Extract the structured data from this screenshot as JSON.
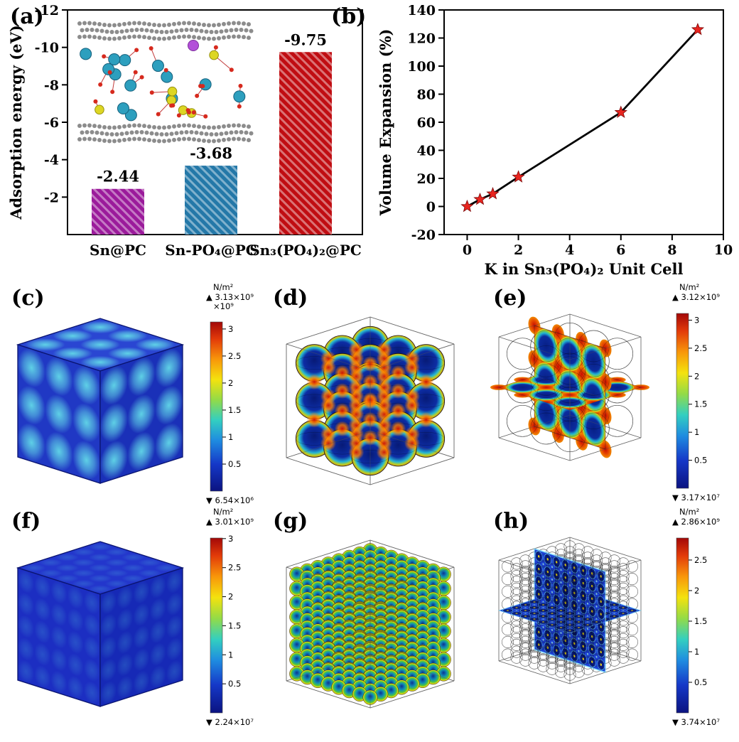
{
  "panels": {
    "a": {
      "label": "(a)"
    },
    "b": {
      "label": "(b)"
    },
    "c": {
      "label": "(c)",
      "colorbar": {
        "unit": "N/m²",
        "max": "3.13×10⁹",
        "multiplier": "×10⁹",
        "min": "6.54×10⁶",
        "ticks": [
          3,
          2.5,
          2,
          1.5,
          1,
          0.5
        ],
        "max_value": 3.13
      }
    },
    "d": {
      "label": "(d)"
    },
    "e": {
      "label": "(e)",
      "colorbar": {
        "unit": "N/m²",
        "max": "3.12×10⁹",
        "multiplier": "",
        "min": "3.17×10⁷",
        "ticks": [
          3,
          2.5,
          2,
          1.5,
          1,
          0.5
        ],
        "max_value": 3.12
      }
    },
    "f": {
      "label": "(f)",
      "colorbar": {
        "unit": "N/m²",
        "max": "3.01×10⁹",
        "multiplier": "",
        "min": "2.24×10⁷",
        "ticks": [
          3,
          2.5,
          2,
          1.5,
          1,
          0.5
        ],
        "max_value": 3.01
      }
    },
    "g": {
      "label": "(g)"
    },
    "h": {
      "label": "(h)",
      "colorbar": {
        "unit": "N/m²",
        "max": "2.86×10⁹",
        "multiplier": "",
        "min": "3.74×10⁷",
        "ticks": [
          2.5,
          2,
          1.5,
          1,
          0.5
        ],
        "max_value": 2.86
      }
    }
  },
  "chart_data": [
    {
      "type": "bar",
      "panel": "a",
      "categories": [
        "Sn@PC",
        "Sn-PO₄@PC",
        "Sn₃(PO₄)₂@PC"
      ],
      "values": [
        -2.44,
        -3.68,
        -9.75
      ],
      "data_labels": [
        "-2.44",
        "-3.68",
        "-9.75"
      ],
      "bar_colors": [
        "#9b1b9b",
        "#2478a8",
        "#c00d12"
      ],
      "hatch": "diagonal",
      "ylabel": "Adsorption energy (eV)",
      "yticks": [
        -12,
        -10,
        -8,
        -6,
        -4,
        -2
      ],
      "ylim": [
        0,
        -12
      ],
      "frame": true
    },
    {
      "type": "line",
      "panel": "b",
      "x": [
        0,
        0.5,
        1,
        2,
        6,
        9
      ],
      "y": [
        0,
        5,
        9,
        21,
        67,
        126
      ],
      "xlabel": "K in Sn₃(PO₄)₂ Unit Cell",
      "ylabel": "Volume Expansion (%)",
      "xticks": [
        0,
        2,
        4,
        6,
        8,
        10
      ],
      "yticks": [
        -20,
        0,
        20,
        40,
        60,
        80,
        100,
        120,
        140
      ],
      "xlim": [
        -0.9,
        10
      ],
      "ylim": [
        -20,
        140
      ],
      "line_color": "#000000",
      "marker": "star",
      "marker_color": "#e8251f",
      "legend": null
    }
  ]
}
